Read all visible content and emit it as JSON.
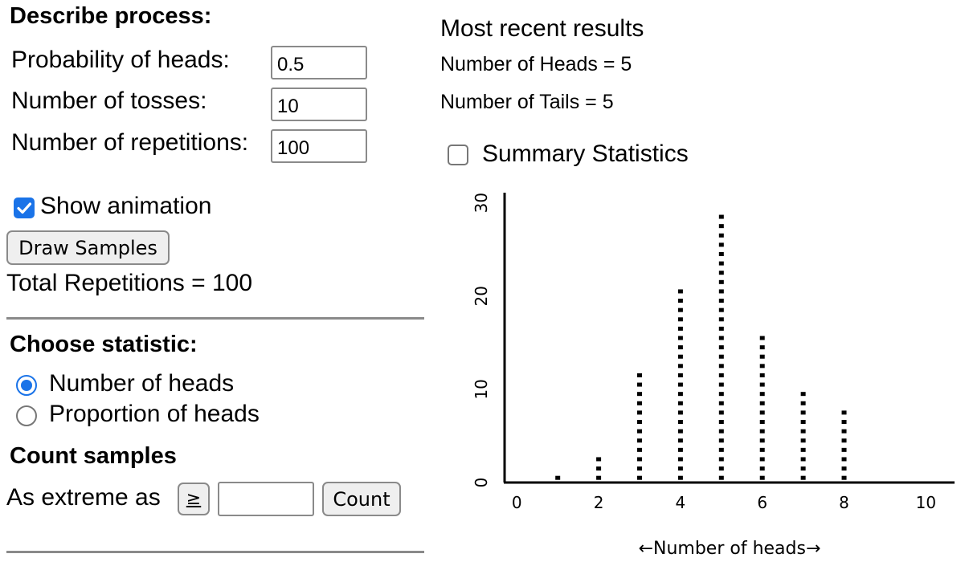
{
  "process": {
    "heading": "Describe process:",
    "prob_label": "Probability of heads:",
    "prob_value": "0.5",
    "tosses_label": "Number of tosses:",
    "tosses_value": "10",
    "reps_label": "Number of repetitions:",
    "reps_value": "100",
    "show_animation_label": "Show animation",
    "show_animation_checked": true,
    "draw_button": "Draw Samples",
    "total_reps": "Total Repetitions = 100"
  },
  "statistic": {
    "heading": "Choose statistic:",
    "options": [
      {
        "label": "Number of heads",
        "selected": true
      },
      {
        "label": "Proportion of heads",
        "selected": false
      }
    ]
  },
  "count": {
    "heading": "Count samples",
    "as_extreme_label": "As extreme as",
    "operator": "≥",
    "value": "",
    "count_button": "Count"
  },
  "results": {
    "title": "Most recent results",
    "heads": "Number of Heads = 5",
    "tails": "Number of Tails = 5",
    "summary_label": "Summary Statistics",
    "summary_checked": false
  },
  "colors": {
    "accent": "#1a73e8",
    "radio_unselected": "#777777",
    "dots": "#000000"
  },
  "chart_data": {
    "type": "scatter",
    "subtype": "dotplot",
    "xlabel": "←Number of heads→",
    "ylabel": "",
    "x_ticks": [
      0,
      2,
      4,
      6,
      8,
      10
    ],
    "y_ticks": [
      0,
      10,
      20,
      30
    ],
    "xlim": [
      -0.3,
      10.7
    ],
    "ylim": [
      0,
      31
    ],
    "series": [
      {
        "x": [
          1,
          2,
          3,
          4,
          5,
          6,
          7,
          8
        ],
        "counts": [
          1,
          3,
          12,
          21,
          29,
          16,
          10,
          8
        ]
      }
    ]
  }
}
